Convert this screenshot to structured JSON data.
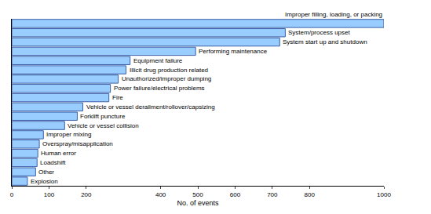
{
  "chart_data": {
    "type": "bar",
    "orientation": "horizontal",
    "x_label": "No. of events",
    "categories": [
      "Improper filling, loading, or packing",
      "System/process upset",
      "System start up and shutdown",
      "Performing maintenance",
      "Equipment failure",
      "Illicit drug production related",
      "Unauthorized/improper dumping",
      "Power failure/electrical problems",
      "Fire",
      "Vehicle or vessel derailment/rollover/capsizing",
      "Forklift puncture",
      "Vehicle or vessel collision",
      "Improper mixing",
      "Overspray/misapplication",
      "Human error",
      "Loadshift",
      "Other",
      "Explosion"
    ],
    "values": [
      1000,
      735,
      720,
      494,
      318,
      307,
      286,
      265,
      261,
      191,
      176,
      142,
      85,
      74,
      70,
      68,
      64,
      42
    ],
    "color": "#99ccff",
    "xlim": [
      0,
      1000
    ],
    "xticks": [
      0,
      100,
      200,
      400,
      500,
      600,
      700,
      800,
      1000
    ],
    "tick_labels": "x",
    "grid": false
  }
}
